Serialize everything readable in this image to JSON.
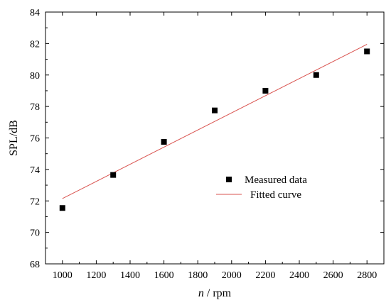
{
  "chart_data": {
    "type": "scatter",
    "xlabel": {
      "italic": "n",
      "rest": " / rpm"
    },
    "ylabel": "SPL/dB",
    "xlim": [
      900,
      2900
    ],
    "ylim": [
      68,
      84
    ],
    "xticks": [
      1000,
      1200,
      1400,
      1600,
      1800,
      2000,
      2200,
      2400,
      2600,
      2800
    ],
    "yticks": [
      68,
      70,
      72,
      74,
      76,
      78,
      80,
      82,
      84
    ],
    "grid": false,
    "legend_position": "center-right",
    "series": [
      {
        "name": "Measured data",
        "kind": "scatter",
        "marker": "square",
        "color": "#000000",
        "x": [
          1000,
          1300,
          1600,
          1900,
          2200,
          2500,
          2800
        ],
        "y": [
          71.55,
          73.65,
          75.75,
          77.75,
          79.0,
          80.0,
          81.5
        ]
      },
      {
        "name": "Fitted curve",
        "kind": "line",
        "color": "#d9534f",
        "x": [
          1000,
          2800
        ],
        "y": [
          72.15,
          81.95
        ]
      }
    ]
  }
}
